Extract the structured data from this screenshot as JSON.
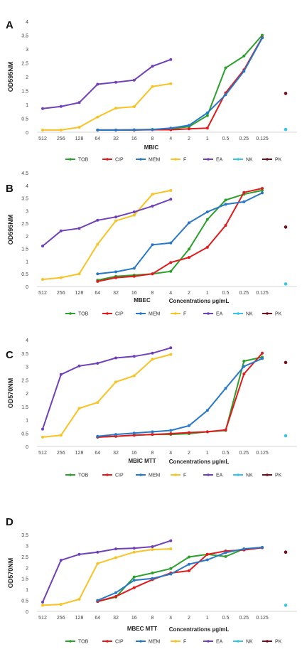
{
  "figure": {
    "x_categories": [
      "512",
      "256",
      "128",
      "64",
      "32",
      "16",
      "8",
      "4",
      "2",
      "1",
      "0.5",
      "0.25",
      "0.125"
    ],
    "legend_labels": [
      "TOB",
      "CIP",
      "MEM",
      "F",
      "EA",
      "NK",
      "PK"
    ],
    "colors": {
      "TOB": "#2ca02c",
      "CIP": "#e31a1c",
      "MEM": "#2878c8",
      "F": "#f7c325",
      "EA": "#7040b8",
      "NK": "#39c6e0",
      "PK": "#6e0e1a"
    }
  },
  "chart_data": [
    {
      "type": "line",
      "panel_letter": "A",
      "ylabel": "OD595NM",
      "xlabel": "MBIC",
      "xlabel_right": "",
      "ylim": [
        0,
        4
      ],
      "yticks": [
        "0",
        "0.5",
        "1",
        "1.5",
        "2",
        "2.5",
        "3",
        "3.5",
        "4"
      ],
      "categories": [
        "512",
        "256",
        "128",
        "64",
        "32",
        "16",
        "8",
        "4",
        "2",
        "1",
        "0.5",
        "0.25",
        "0.125"
      ],
      "series": [
        {
          "name": "TOB",
          "values": [
            null,
            null,
            null,
            0.08,
            0.08,
            0.08,
            0.1,
            0.12,
            0.2,
            0.6,
            2.32,
            2.75,
            3.5
          ]
        },
        {
          "name": "CIP",
          "values": [
            null,
            null,
            null,
            0.08,
            0.08,
            0.08,
            0.09,
            0.09,
            0.12,
            0.15,
            1.42,
            2.25,
            3.42
          ]
        },
        {
          "name": "MEM",
          "values": [
            null,
            null,
            null,
            0.08,
            0.08,
            0.09,
            0.1,
            0.15,
            0.25,
            0.7,
            1.35,
            2.2,
            3.4
          ]
        },
        {
          "name": "F",
          "values": [
            0.08,
            0.08,
            0.18,
            0.55,
            0.87,
            0.92,
            1.65,
            1.75,
            null,
            null,
            null,
            null,
            null
          ]
        },
        {
          "name": "EA",
          "values": [
            0.85,
            0.93,
            1.07,
            1.73,
            1.8,
            1.88,
            2.38,
            2.62,
            null,
            null,
            null,
            null,
            null
          ]
        }
      ],
      "controls": [
        {
          "name": "NK",
          "value": 0.1
        },
        {
          "name": "PK",
          "value": 1.4
        }
      ]
    },
    {
      "type": "line",
      "panel_letter": "B",
      "ylabel": "OD595NM",
      "xlabel": "MBEC",
      "xlabel_right": "Concentrations µg/mL",
      "ylim": [
        0,
        4.5
      ],
      "yticks": [
        "0",
        "0.5",
        "1",
        "1.5",
        "2",
        "2.5",
        "3",
        "3.5",
        "4",
        "4.5"
      ],
      "categories": [
        "512",
        "256",
        "128",
        "64",
        "32",
        "16",
        "8",
        "4",
        "2",
        "1",
        "0.5",
        "0.25",
        "0.125"
      ],
      "series": [
        {
          "name": "TOB",
          "values": [
            null,
            null,
            null,
            0.25,
            0.4,
            0.45,
            0.5,
            0.6,
            1.48,
            2.65,
            3.42,
            3.65,
            3.8
          ]
        },
        {
          "name": "CIP",
          "values": [
            null,
            null,
            null,
            0.2,
            0.35,
            0.4,
            0.5,
            0.95,
            1.15,
            1.55,
            2.42,
            3.72,
            3.88
          ]
        },
        {
          "name": "MEM",
          "values": [
            null,
            null,
            null,
            0.5,
            0.58,
            0.72,
            1.65,
            1.72,
            2.52,
            2.95,
            3.25,
            3.35,
            3.7
          ]
        },
        {
          "name": "F",
          "values": [
            0.28,
            0.35,
            0.5,
            1.67,
            2.6,
            2.82,
            3.65,
            3.8,
            null,
            null,
            null,
            null,
            null
          ]
        },
        {
          "name": "EA",
          "values": [
            1.6,
            2.2,
            2.3,
            2.62,
            2.75,
            2.95,
            3.18,
            3.45,
            null,
            null,
            null,
            null,
            null
          ]
        }
      ],
      "controls": [
        {
          "name": "NK",
          "value": 0.1
        },
        {
          "name": "PK",
          "value": 2.35
        }
      ]
    },
    {
      "type": "line",
      "panel_letter": "C",
      "ylabel": "OD570NM",
      "xlabel": "MBIC MTT",
      "xlabel_right": "Concentrations µg/mL",
      "ylim": [
        0,
        4
      ],
      "yticks": [
        "0",
        "0.5",
        "1",
        "1.5",
        "2",
        "2.5",
        "3",
        "3.5",
        "4"
      ],
      "categories": [
        "512",
        "256",
        "128",
        "64",
        "32",
        "16",
        "8",
        "4",
        "2",
        "1",
        "0.5",
        "0.25",
        "0.125"
      ],
      "series": [
        {
          "name": "TOB",
          "values": [
            null,
            null,
            null,
            0.35,
            0.38,
            0.42,
            0.45,
            0.45,
            0.48,
            0.55,
            0.6,
            3.2,
            3.35
          ]
        },
        {
          "name": "CIP",
          "values": [
            null,
            null,
            null,
            0.35,
            0.38,
            0.42,
            0.45,
            0.48,
            0.52,
            0.55,
            0.62,
            2.72,
            3.5
          ]
        },
        {
          "name": "MEM",
          "values": [
            null,
            null,
            null,
            0.38,
            0.45,
            0.5,
            0.55,
            0.6,
            0.78,
            1.35,
            2.18,
            3.0,
            3.3
          ]
        },
        {
          "name": "F",
          "values": [
            0.35,
            0.42,
            1.43,
            1.65,
            2.42,
            2.65,
            3.27,
            3.45,
            null,
            null,
            null,
            null,
            null
          ]
        },
        {
          "name": "EA",
          "values": [
            0.65,
            2.7,
            3.02,
            3.12,
            3.32,
            3.38,
            3.5,
            3.7,
            null,
            null,
            null,
            null,
            null
          ]
        }
      ],
      "controls": [
        {
          "name": "NK",
          "value": 0.4
        },
        {
          "name": "PK",
          "value": 3.15
        }
      ]
    },
    {
      "type": "line",
      "panel_letter": "D",
      "ylabel": "OD570NM",
      "xlabel": "MBEC MTT",
      "xlabel_right": "Concentrations µg/mL",
      "ylim": [
        0,
        3.5
      ],
      "yticks": [
        "0",
        "0.5",
        "1",
        "1.5",
        "2",
        "2.5",
        "3",
        "3.5"
      ],
      "categories": [
        "512",
        "256",
        "128",
        "64",
        "32",
        "16",
        "8",
        "4",
        "2",
        "1",
        "0.5",
        "0.25",
        "0.125"
      ],
      "series": [
        {
          "name": "TOB",
          "values": [
            null,
            null,
            null,
            0.45,
            0.65,
            1.57,
            1.75,
            1.95,
            2.48,
            2.6,
            2.5,
            2.85,
            2.9
          ]
        },
        {
          "name": "CIP",
          "values": [
            null,
            null,
            null,
            0.45,
            0.68,
            1.08,
            1.45,
            1.75,
            1.85,
            2.6,
            2.75,
            2.8,
            2.9
          ]
        },
        {
          "name": "MEM",
          "values": [
            null,
            null,
            null,
            0.5,
            0.85,
            1.42,
            1.5,
            1.7,
            2.15,
            2.35,
            2.68,
            2.85,
            2.92
          ]
        },
        {
          "name": "F",
          "values": [
            0.28,
            0.32,
            0.55,
            2.18,
            2.45,
            2.7,
            2.82,
            2.85,
            null,
            null,
            null,
            null,
            null
          ]
        },
        {
          "name": "EA",
          "values": [
            0.42,
            2.33,
            2.6,
            2.7,
            2.85,
            2.88,
            2.95,
            3.22,
            null,
            null,
            null,
            null,
            null
          ]
        }
      ],
      "controls": [
        {
          "name": "NK",
          "value": 0.28
        },
        {
          "name": "PK",
          "value": 2.7
        }
      ]
    }
  ]
}
